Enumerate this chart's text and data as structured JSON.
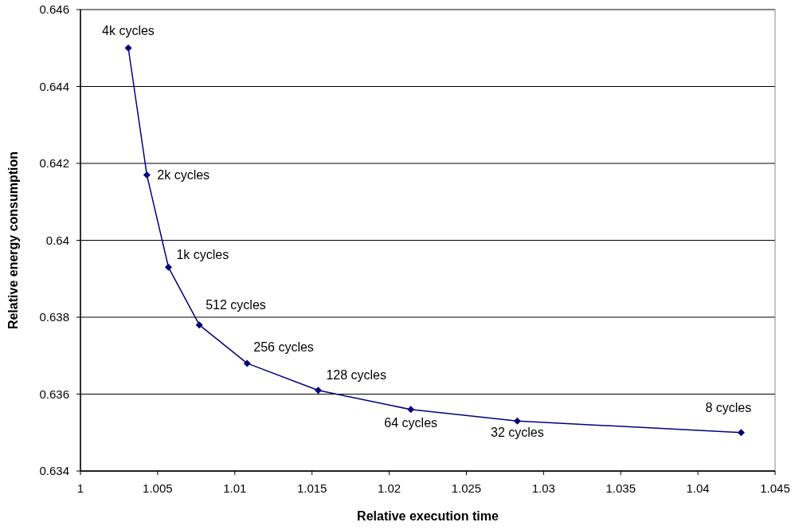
{
  "chart_data": {
    "type": "line",
    "xlabel": "Relative execution time",
    "ylabel": "Relative energy consumption",
    "x": [
      1.0031,
      1.0043,
      1.0057,
      1.0077,
      1.0108,
      1.0154,
      1.0214,
      1.0283,
      1.0428
    ],
    "series": [
      {
        "color": "#000080",
        "values": [
          0.645,
          0.6417,
          0.6393,
          0.6378,
          0.6368,
          0.6361,
          0.6356,
          0.6353,
          0.635
        ]
      }
    ],
    "xlim": [
      1,
      1.045
    ],
    "xticks": [
      1,
      1.005,
      1.01,
      1.015,
      1.02,
      1.025,
      1.03,
      1.035,
      1.04,
      1.045
    ],
    "ylim": [
      0.634,
      0.646
    ],
    "yticks": [
      0.634,
      0.636,
      0.638,
      0.64,
      0.642,
      0.644,
      0.646
    ],
    "grid": "y",
    "marker": "diamond",
    "line_style": "solid",
    "annotations": [
      {
        "text": "4k cycles",
        "x": 1.0031,
        "y": 0.645
      },
      {
        "text": "2k cycles",
        "x": 1.0043,
        "y": 0.6417
      },
      {
        "text": "1k cycles",
        "x": 1.0057,
        "y": 0.6393
      },
      {
        "text": "512 cycles",
        "x": 1.0077,
        "y": 0.6378
      },
      {
        "text": "256 cycles",
        "x": 1.0108,
        "y": 0.6368
      },
      {
        "text": "128 cycles",
        "x": 1.0154,
        "y": 0.6361
      },
      {
        "text": "64 cycles",
        "x": 1.0214,
        "y": 0.6356
      },
      {
        "text": "32 cycles",
        "x": 1.0283,
        "y": 0.6353
      },
      {
        "text": "8 cycles",
        "x": 1.0428,
        "y": 0.635
      }
    ]
  }
}
